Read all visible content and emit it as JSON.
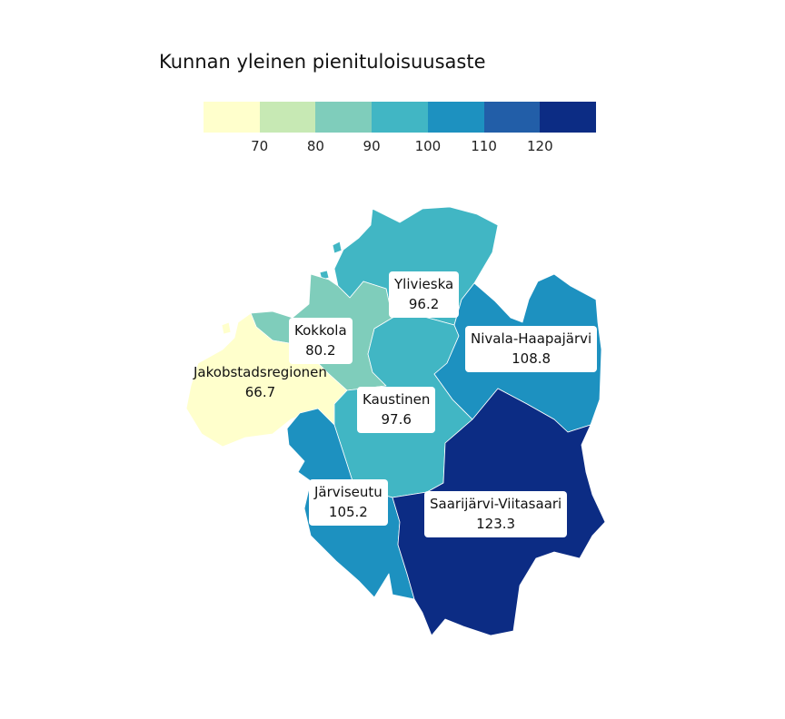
{
  "title": "Kunnan yleinen pienituloisuusaste",
  "legend": {
    "colors": [
      "#ffffcc",
      "#c7e9b4",
      "#7fcdbb",
      "#41b6c4",
      "#1d91c0",
      "#225ea8",
      "#0c2c84"
    ],
    "ticks": [
      "70",
      "80",
      "90",
      "100",
      "110",
      "120"
    ]
  },
  "regions": [
    {
      "name": "Jakobstadsregionen",
      "value": "66.7",
      "color": "#ffffcc"
    },
    {
      "name": "Kokkola",
      "value": "80.2",
      "color": "#7fcdbb"
    },
    {
      "name": "Ylivieska",
      "value": "96.2",
      "color": "#41b6c4"
    },
    {
      "name": "Kaustinen",
      "value": "97.6",
      "color": "#41b6c4"
    },
    {
      "name": "Nivala-Haapajärvi",
      "value": "108.8",
      "color": "#1d91c0"
    },
    {
      "name": "Järviseutu",
      "value": "105.2",
      "color": "#1d91c0"
    },
    {
      "name": "Saarijärvi-Viitasaari",
      "value": "123.3",
      "color": "#0c2c84"
    }
  ]
}
